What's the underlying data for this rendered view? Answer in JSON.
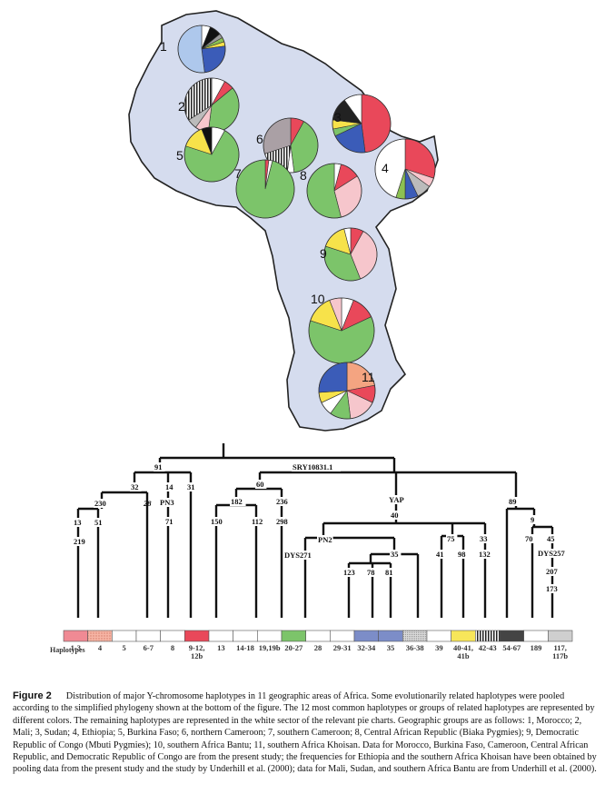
{
  "map": {
    "land_color": "#d5dcee",
    "regions": [
      {
        "label": "1",
        "slices": [
          {
            "color": "#ffffff",
            "v": 6
          },
          {
            "color": "#111111",
            "v": 8
          },
          {
            "color": "#999999",
            "v": 3
          },
          {
            "color": "#8cc152",
            "v": 3
          },
          {
            "color": "#f7e24a",
            "v": 3
          },
          {
            "color": "#3b5cb8",
            "v": 25
          },
          {
            "color": "#aec8ec",
            "v": 52
          }
        ]
      },
      {
        "label": "2",
        "slices": [
          {
            "color": "#ffffff",
            "v": 8
          },
          {
            "color": "#e9485a",
            "v": 6
          },
          {
            "color": "#7cc46a",
            "v": 38
          },
          {
            "color": "#f6c6cc",
            "v": 8
          },
          {
            "color": "#bbbbbb",
            "v": 6
          },
          {
            "color": "#222222",
            "v": 34
          }
        ]
      },
      {
        "label": "3",
        "slices": [
          {
            "color": "#e9485a",
            "v": 48
          },
          {
            "color": "#3b5cb8",
            "v": 20
          },
          {
            "color": "#7cc46a",
            "v": 4
          },
          {
            "color": "#f7e24a",
            "v": 5
          },
          {
            "color": "#222222",
            "v": 13
          },
          {
            "color": "#ffffff",
            "v": 10
          }
        ]
      },
      {
        "label": "4",
        "slices": [
          {
            "color": "#e9485a",
            "v": 30
          },
          {
            "color": "#f6c6cc",
            "v": 5
          },
          {
            "color": "#bbbbbb",
            "v": 8
          },
          {
            "color": "#3b5cb8",
            "v": 7
          },
          {
            "color": "#8cc152",
            "v": 5
          },
          {
            "color": "#ffffff",
            "v": 45
          }
        ]
      },
      {
        "label": "5",
        "slices": [
          {
            "color": "#ffffff",
            "v": 8
          },
          {
            "color": "#7cc46a",
            "v": 72
          },
          {
            "color": "#f7e24a",
            "v": 14
          },
          {
            "color": "#111111",
            "v": 6
          }
        ]
      },
      {
        "label": "6",
        "slices": [
          {
            "color": "#e9485a",
            "v": 8
          },
          {
            "color": "#7cc46a",
            "v": 40
          },
          {
            "color": "#ffffff",
            "v": 4
          },
          {
            "color": "#222222",
            "v": 18
          },
          {
            "color": "#aaa0a5",
            "v": 30
          }
        ]
      },
      {
        "label": "7",
        "slices": [
          {
            "color": "#e9485a",
            "v": 2
          },
          {
            "color": "#ffffff",
            "v": 2
          },
          {
            "color": "#7cc46a",
            "v": 96
          }
        ]
      },
      {
        "label": "8",
        "slices": [
          {
            "color": "#ffffff",
            "v": 4
          },
          {
            "color": "#e9485a",
            "v": 12
          },
          {
            "color": "#f6c6cc",
            "v": 30
          },
          {
            "color": "#7cc46a",
            "v": 54
          }
        ]
      },
      {
        "label": "9",
        "slices": [
          {
            "color": "#e9485a",
            "v": 8
          },
          {
            "color": "#f6c6cc",
            "v": 36
          },
          {
            "color": "#7cc46a",
            "v": 36
          },
          {
            "color": "#f7e24a",
            "v": 16
          },
          {
            "color": "#ffffff",
            "v": 4
          }
        ]
      },
      {
        "label": "10",
        "slices": [
          {
            "color": "#ffffff",
            "v": 6
          },
          {
            "color": "#e9485a",
            "v": 12
          },
          {
            "color": "#7cc46a",
            "v": 62
          },
          {
            "color": "#f7e24a",
            "v": 14
          },
          {
            "color": "#f6c6cc",
            "v": 6
          }
        ]
      },
      {
        "label": "11",
        "slices": [
          {
            "color": "#f4a481",
            "v": 22
          },
          {
            "color": "#e9485a",
            "v": 10
          },
          {
            "color": "#f6c6cc",
            "v": 16
          },
          {
            "color": "#7cc46a",
            "v": 12
          },
          {
            "color": "#ffffff",
            "v": 8
          },
          {
            "color": "#f7e24a",
            "v": 6
          },
          {
            "color": "#3b5cb8",
            "v": 26
          }
        ]
      }
    ]
  },
  "tree": {
    "nodes": [
      "91",
      "32",
      "230",
      "13",
      "51",
      "219",
      "14",
      "PN3",
      "71",
      "31",
      "SRY10831.1",
      "60",
      "182",
      "150",
      "112",
      "236",
      "298",
      "YAP",
      "40",
      "PN2",
      "DYS271",
      "35",
      "123",
      "78",
      "81",
      "75",
      "41",
      "98",
      "33",
      "132",
      "89",
      "9",
      "70",
      "45",
      "DYS257",
      "207",
      "173"
    ],
    "italic_label": "28"
  },
  "haplotypes": {
    "title": "Haplotypes",
    "items": [
      {
        "label": "1-3",
        "color": "#f08a94"
      },
      {
        "label": "4",
        "color": "#f6b4a4"
      },
      {
        "label": "5",
        "color": "#ffffff"
      },
      {
        "label": "6-7",
        "color": "#ffffff"
      },
      {
        "label": "8",
        "color": "#ffffff"
      },
      {
        "label": "9-12,\n12b",
        "color": "#e9485a"
      },
      {
        "label": "13",
        "color": "#ffffff"
      },
      {
        "label": "14-18",
        "color": "#ffffff"
      },
      {
        "label": "19,19b",
        "color": "#ffffff"
      },
      {
        "label": "20-27",
        "color": "#7cc46a"
      },
      {
        "label": "28",
        "color": "#ffffff"
      },
      {
        "label": "29-31",
        "color": "#ffffff"
      },
      {
        "label": "32-34",
        "color": "#7c8dc8"
      },
      {
        "label": "35",
        "color": "#7c8dc8"
      },
      {
        "label": "36-38",
        "color": "#e4e4e4"
      },
      {
        "label": "39",
        "color": "#ffffff"
      },
      {
        "label": "40-41,\n41b",
        "color": "#f7e65a"
      },
      {
        "label": "42-43",
        "color": "#777777"
      },
      {
        "label": "54-67",
        "color": "#444444"
      },
      {
        "label": "189",
        "color": "#ffffff"
      },
      {
        "label": "117,\n117b",
        "color": "#cfcfcf"
      }
    ]
  },
  "caption": {
    "figure_number": "Figure 2",
    "text": "Distribution of major Y-chromosome haplotypes in 11 geographic areas of Africa. Some evolutionarily related haplotypes were pooled according to the simplified phylogeny shown at the bottom of the figure. The 12 most common haplotypes or groups of related haplotypes are represented by different colors. The remaining haplotypes are represented in the white sector of the relevant pie charts. Geographic groups are as follows: 1, Morocco; 2, Mali; 3, Sudan; 4, Ethiopia; 5, Burkina Faso; 6, northern Cameroon; 7, southern Cameroon; 8, Central African Republic (Biaka Pygmies); 9, Democratic Republic of Congo (Mbuti Pygmies); 10, southern Africa Bantu; 11, southern Africa Khoisan. Data for Morocco, Burkina Faso, Cameroon, Central African Republic, and Democratic Republic of Congo are from the present study; the frequencies for Ethiopia and the southern Africa Khoisan have been obtained by pooling data from the present study and the study by Underhill et al. (2000); data for Mali, Sudan, and southern Africa Bantu are from Underhill et al. (2000)."
  }
}
